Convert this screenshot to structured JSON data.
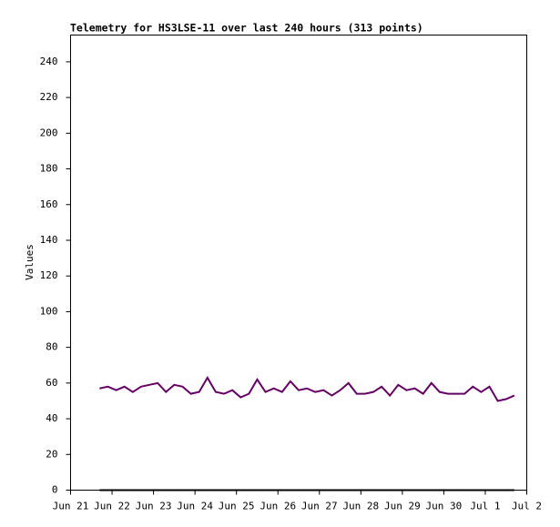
{
  "chart_data": {
    "type": "line",
    "title": "Telemetry for HS3LSE-11 over last 240 hours (313 points)",
    "y_label": "Values",
    "x": [
      21.7,
      21.9,
      22.1,
      22.3,
      22.5,
      22.7,
      22.9,
      23.1,
      23.3,
      23.5,
      23.7,
      23.9,
      24.1,
      24.3,
      24.5,
      24.7,
      24.9,
      25.1,
      25.3,
      25.5,
      25.7,
      25.9,
      26.1,
      26.3,
      26.5,
      26.7,
      26.9,
      27.1,
      27.3,
      27.5,
      27.7,
      27.9,
      28.1,
      28.3,
      28.5,
      28.7,
      28.9,
      29.1,
      29.3,
      29.5,
      29.7,
      29.9,
      30.1,
      30.3,
      30.5,
      30.7,
      30.9,
      31.1,
      31.3,
      31.5,
      31.7
    ],
    "series": [
      {
        "color": "#660066",
        "values": [
          57,
          58,
          56,
          58,
          55,
          58,
          59,
          60,
          55,
          59,
          58,
          54,
          55,
          63,
          55,
          54,
          56,
          52,
          54,
          62,
          55,
          57,
          55,
          61,
          56,
          57,
          55,
          56,
          53,
          56,
          60,
          54,
          54,
          55,
          58,
          53,
          59,
          56,
          57,
          54,
          60,
          55,
          54,
          54,
          54,
          58,
          55,
          58,
          50,
          51,
          53
        ]
      },
      {
        "color": "#000000",
        "values": [
          0,
          0,
          0,
          0,
          0,
          0,
          0,
          0,
          0,
          0,
          0,
          0,
          0,
          0,
          0,
          0,
          0,
          0,
          0,
          0,
          0,
          0,
          0,
          0,
          0,
          0,
          0,
          0,
          0,
          0,
          0,
          0,
          0,
          0,
          0,
          0,
          0,
          0,
          0,
          0,
          0,
          0,
          0,
          0,
          0,
          0,
          0,
          0,
          0,
          0,
          0
        ]
      }
    ],
    "xlim": [
      21,
      32
    ],
    "xticks": [
      {
        "value": 21,
        "label": "Jun 21"
      },
      {
        "value": 22,
        "label": "Jun 22"
      },
      {
        "value": 23,
        "label": "Jun 23"
      },
      {
        "value": 24,
        "label": "Jun 24"
      },
      {
        "value": 25,
        "label": "Jun 25"
      },
      {
        "value": 26,
        "label": "Jun 26"
      },
      {
        "value": 27,
        "label": "Jun 27"
      },
      {
        "value": 28,
        "label": "Jun 28"
      },
      {
        "value": 29,
        "label": "Jun 29"
      },
      {
        "value": 30,
        "label": "Jun 30"
      },
      {
        "value": 31,
        "label": "Jul 1"
      },
      {
        "value": 32,
        "label": "Jul 2"
      }
    ],
    "ylim": [
      0,
      255
    ],
    "yticks": [
      0,
      20,
      40,
      60,
      80,
      100,
      120,
      140,
      160,
      180,
      200,
      220,
      240
    ],
    "grid": false
  }
}
